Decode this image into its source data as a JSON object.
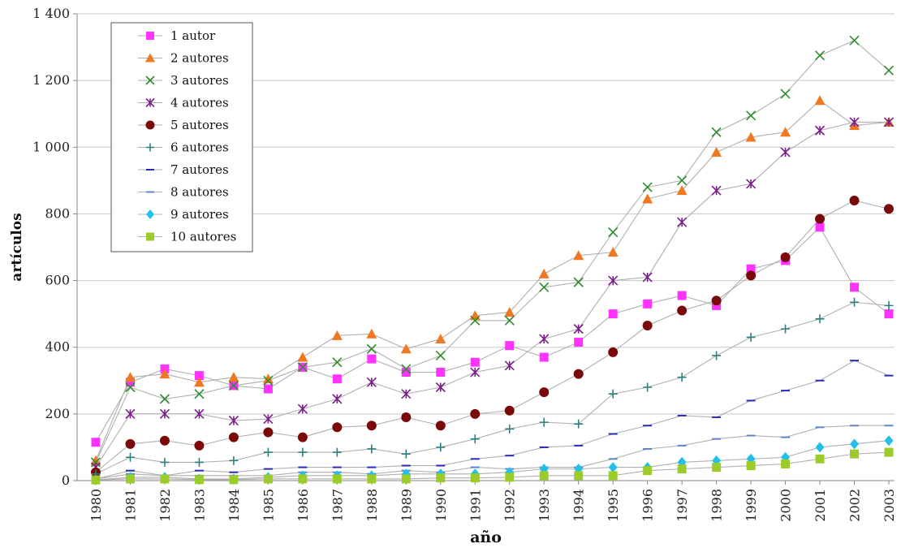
{
  "chart_data": {
    "type": "line",
    "title": "",
    "xlabel": "año",
    "ylabel": "artículos",
    "ylim": [
      0,
      1400
    ],
    "yticks": [
      0,
      200,
      400,
      600,
      800,
      1000,
      1200,
      1400
    ],
    "ytick_labels": [
      "0",
      "200",
      "400",
      "600",
      "800",
      "1 000",
      "1 200",
      "1 400"
    ],
    "x": [
      "1980",
      "1981",
      "1982",
      "1983",
      "1984",
      "1985",
      "1986",
      "1987",
      "1988",
      "1989",
      "1990",
      "1991",
      "1992",
      "1993",
      "1994",
      "1995",
      "1996",
      "1997",
      "1998",
      "1999",
      "2000",
      "2001",
      "2002",
      "2003"
    ],
    "grid": "horizontal",
    "legend_position": "top-left",
    "series": [
      {
        "name": "1  autor",
        "marker": "square",
        "color": "#ff33ff",
        "values": [
          115,
          295,
          335,
          315,
          285,
          275,
          340,
          305,
          365,
          325,
          325,
          355,
          405,
          370,
          415,
          500,
          530,
          555,
          525,
          635,
          660,
          760,
          580,
          500
        ]
      },
      {
        "name": "2 autores",
        "marker": "triangle",
        "color": "#f07820",
        "values": [
          60,
          310,
          320,
          295,
          310,
          305,
          370,
          435,
          440,
          395,
          425,
          495,
          505,
          620,
          675,
          685,
          845,
          870,
          985,
          1030,
          1045,
          1140,
          1065,
          1075
        ]
      },
      {
        "name": "3 autores",
        "marker": "x",
        "color": "#2e8b2e",
        "values": [
          55,
          280,
          245,
          260,
          285,
          300,
          340,
          355,
          395,
          335,
          375,
          480,
          480,
          580,
          595,
          745,
          880,
          900,
          1045,
          1095,
          1160,
          1275,
          1320,
          1230
        ]
      },
      {
        "name": "4 autores",
        "marker": "star",
        "color": "#7a1f8a",
        "values": [
          40,
          200,
          200,
          200,
          180,
          185,
          215,
          245,
          295,
          260,
          280,
          325,
          345,
          425,
          455,
          600,
          610,
          775,
          870,
          890,
          985,
          1050,
          1075,
          1075
        ]
      },
      {
        "name": "5 autores",
        "marker": "circle",
        "color": "#7a0a0a",
        "values": [
          25,
          110,
          120,
          105,
          130,
          145,
          130,
          160,
          165,
          190,
          165,
          200,
          210,
          265,
          320,
          385,
          465,
          510,
          540,
          615,
          670,
          785,
          840,
          815
        ]
      },
      {
        "name": "6 autores",
        "marker": "plus",
        "color": "#2a7f7f",
        "values": [
          20,
          70,
          55,
          55,
          60,
          85,
          85,
          85,
          95,
          80,
          100,
          125,
          155,
          175,
          170,
          260,
          280,
          310,
          375,
          430,
          455,
          485,
          535,
          525
        ]
      },
      {
        "name": "7 autores",
        "marker": "dash",
        "color": "#2a2ab8",
        "values": [
          5,
          30,
          15,
          30,
          25,
          35,
          40,
          40,
          40,
          45,
          45,
          65,
          75,
          100,
          105,
          140,
          165,
          195,
          190,
          240,
          270,
          300,
          360,
          315
        ]
      },
      {
        "name": "8 autores",
        "marker": "dash",
        "color": "#5b87c7",
        "values": [
          5,
          20,
          15,
          15,
          15,
          15,
          25,
          25,
          20,
          30,
          25,
          40,
          35,
          40,
          40,
          65,
          95,
          105,
          125,
          135,
          130,
          160,
          165,
          165
        ]
      },
      {
        "name": "9 autores",
        "marker": "diamond",
        "color": "#22c0e8",
        "values": [
          2,
          10,
          10,
          5,
          5,
          10,
          15,
          15,
          15,
          20,
          20,
          20,
          25,
          35,
          35,
          40,
          40,
          55,
          60,
          65,
          70,
          100,
          110,
          120
        ]
      },
      {
        "name": "10 autores",
        "marker": "square",
        "color": "#9ccc2a",
        "values": [
          2,
          5,
          5,
          3,
          3,
          5,
          5,
          5,
          5,
          5,
          8,
          8,
          10,
          15,
          15,
          15,
          30,
          35,
          40,
          45,
          50,
          65,
          80,
          85
        ]
      }
    ]
  }
}
